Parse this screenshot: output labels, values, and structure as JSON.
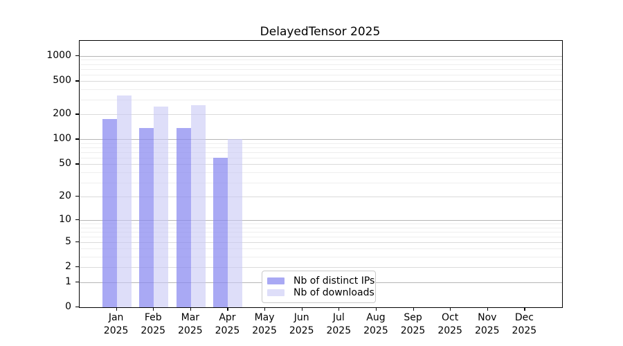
{
  "chart_data": {
    "type": "bar",
    "title": "DelayedTensor 2025",
    "categories": [
      "Jan",
      "Feb",
      "Mar",
      "Apr",
      "May",
      "Jun",
      "Jul",
      "Aug",
      "Sep",
      "Oct",
      "Nov",
      "Dec"
    ],
    "x_tick_year": "2025",
    "series": [
      {
        "name": "Nb of distinct IPs",
        "color": "#8888f0",
        "opacity": 0.72,
        "values": [
          175,
          138,
          137,
          60,
          null,
          null,
          null,
          null,
          null,
          null,
          null,
          null
        ]
      },
      {
        "name": "Nb of downloads",
        "color": "#c8c8f5",
        "opacity": 0.6,
        "values": [
          335,
          250,
          260,
          100,
          null,
          null,
          null,
          null,
          null,
          null,
          null,
          null
        ]
      }
    ],
    "y_ticks": [
      0,
      1,
      2,
      5,
      10,
      20,
      50,
      100,
      200,
      500,
      1000
    ],
    "y_scale": "log1p",
    "ylim": [
      0,
      1520
    ],
    "grid": "horizontal",
    "legend_position": "lower-center"
  },
  "colors": {
    "background": "#ffffff",
    "spine": "#000000",
    "grid_major": "#b5b5b5",
    "grid_mid": "#dadada",
    "grid_minor": "#eeeeee",
    "text": "#000000"
  }
}
